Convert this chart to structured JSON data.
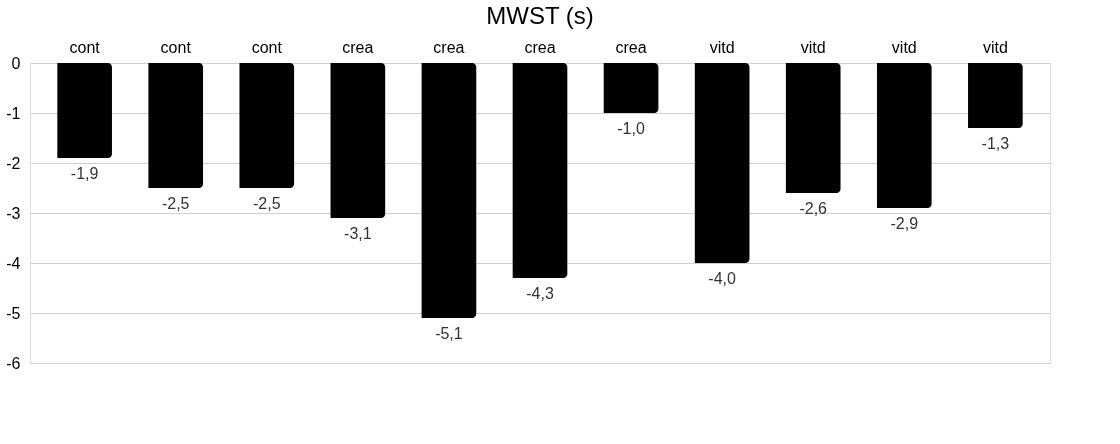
{
  "chart_data": {
    "type": "bar",
    "title": "MWST (s)",
    "categories": [
      "cont",
      "cont",
      "cont",
      "crea",
      "crea",
      "crea",
      "crea",
      "vitd",
      "vitd",
      "vitd",
      "vitd"
    ],
    "values": [
      -1.9,
      -2.5,
      -2.5,
      -3.1,
      -5.1,
      -4.3,
      -1.0,
      -4.0,
      -2.6,
      -2.9,
      -1.3
    ],
    "value_labels": [
      "-1,9",
      "-2,5",
      "-2,5",
      "-3,1",
      "-5,1",
      "-4,3",
      "-1,0",
      "-4,0",
      "-2,6",
      "-2,9",
      "-1,3"
    ],
    "color": "#000000",
    "ylim": [
      -6,
      0
    ],
    "yticks": [
      -6,
      -5,
      -4,
      -3,
      -2,
      -1,
      0
    ],
    "grid": "y"
  }
}
